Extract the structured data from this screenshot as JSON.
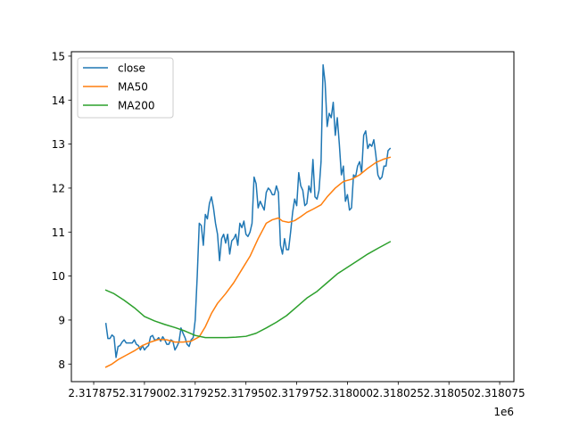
{
  "chart_data": {
    "type": "line",
    "title": "",
    "xlabel": "",
    "ylabel": "",
    "x_offset_label": "1e6",
    "xlim": [
      2317864,
      2318082
    ],
    "ylim": [
      7.6,
      15.1
    ],
    "x_ticks": [
      {
        "value": 2317875,
        "label": "2.317875"
      },
      {
        "value": 2317900,
        "label": "2.317900"
      },
      {
        "value": 2317925,
        "label": "2.317925"
      },
      {
        "value": 2317950,
        "label": "2.317950"
      },
      {
        "value": 2317975,
        "label": "2.317975"
      },
      {
        "value": 2318000,
        "label": "2.318000"
      },
      {
        "value": 2318025,
        "label": "2.318025"
      },
      {
        "value": 2318050,
        "label": "2.318050"
      },
      {
        "value": 2318075,
        "label": "2.318075"
      }
    ],
    "y_ticks": [
      {
        "value": 8,
        "label": "8"
      },
      {
        "value": 9,
        "label": "9"
      },
      {
        "value": 10,
        "label": "10"
      },
      {
        "value": 11,
        "label": "11"
      },
      {
        "value": 12,
        "label": "12"
      },
      {
        "value": 13,
        "label": "13"
      },
      {
        "value": 14,
        "label": "14"
      },
      {
        "value": 15,
        "label": "15"
      }
    ],
    "grid": false,
    "legend_position": "top-left",
    "series": [
      {
        "name": "close",
        "color": "#1f77b4",
        "points": [
          [
            2317881,
            8.92
          ],
          [
            2317882,
            8.58
          ],
          [
            2317883,
            8.58
          ],
          [
            2317884,
            8.66
          ],
          [
            2317885,
            8.62
          ],
          [
            2317886,
            8.15
          ],
          [
            2317887,
            8.4
          ],
          [
            2317888,
            8.42
          ],
          [
            2317889,
            8.5
          ],
          [
            2317890,
            8.55
          ],
          [
            2317891,
            8.48
          ],
          [
            2317892,
            8.48
          ],
          [
            2317893,
            8.48
          ],
          [
            2317894,
            8.48
          ],
          [
            2317895,
            8.55
          ],
          [
            2317896,
            8.45
          ],
          [
            2317897,
            8.42
          ],
          [
            2317898,
            8.32
          ],
          [
            2317899,
            8.42
          ],
          [
            2317900,
            8.32
          ],
          [
            2317901,
            8.38
          ],
          [
            2317902,
            8.42
          ],
          [
            2317903,
            8.62
          ],
          [
            2317904,
            8.65
          ],
          [
            2317905,
            8.55
          ],
          [
            2317906,
            8.55
          ],
          [
            2317907,
            8.6
          ],
          [
            2317908,
            8.52
          ],
          [
            2317909,
            8.62
          ],
          [
            2317910,
            8.55
          ],
          [
            2317911,
            8.45
          ],
          [
            2317912,
            8.45
          ],
          [
            2317913,
            8.55
          ],
          [
            2317914,
            8.52
          ],
          [
            2317915,
            8.32
          ],
          [
            2317916,
            8.4
          ],
          [
            2317917,
            8.5
          ],
          [
            2317918,
            8.82
          ],
          [
            2317919,
            8.7
          ],
          [
            2317920,
            8.6
          ],
          [
            2317921,
            8.45
          ],
          [
            2317922,
            8.4
          ],
          [
            2317923,
            8.55
          ],
          [
            2317924,
            8.6
          ],
          [
            2317925,
            9.0
          ],
          [
            2317926,
            10.0
          ],
          [
            2317927,
            11.2
          ],
          [
            2317928,
            11.15
          ],
          [
            2317929,
            10.7
          ],
          [
            2317930,
            11.4
          ],
          [
            2317931,
            11.3
          ],
          [
            2317932,
            11.65
          ],
          [
            2317933,
            11.8
          ],
          [
            2317934,
            11.55
          ],
          [
            2317935,
            11.2
          ],
          [
            2317936,
            10.95
          ],
          [
            2317937,
            10.35
          ],
          [
            2317938,
            10.85
          ],
          [
            2317939,
            10.95
          ],
          [
            2317940,
            10.75
          ],
          [
            2317941,
            10.95
          ],
          [
            2317942,
            10.5
          ],
          [
            2317943,
            10.8
          ],
          [
            2317944,
            10.85
          ],
          [
            2317945,
            10.95
          ],
          [
            2317946,
            10.7
          ],
          [
            2317947,
            11.2
          ],
          [
            2317948,
            11.1
          ],
          [
            2317949,
            11.25
          ],
          [
            2317950,
            10.95
          ],
          [
            2317951,
            10.9
          ],
          [
            2317952,
            11.0
          ],
          [
            2317953,
            11.2
          ],
          [
            2317954,
            12.25
          ],
          [
            2317955,
            12.1
          ],
          [
            2317956,
            11.55
          ],
          [
            2317957,
            11.7
          ],
          [
            2317958,
            11.6
          ],
          [
            2317959,
            11.5
          ],
          [
            2317960,
            11.9
          ],
          [
            2317961,
            12.0
          ],
          [
            2317962,
            11.95
          ],
          [
            2317963,
            11.85
          ],
          [
            2317964,
            11.85
          ],
          [
            2317965,
            12.05
          ],
          [
            2317966,
            11.9
          ],
          [
            2317967,
            10.7
          ],
          [
            2317968,
            10.5
          ],
          [
            2317969,
            10.85
          ],
          [
            2317970,
            10.6
          ],
          [
            2317971,
            10.6
          ],
          [
            2317972,
            11.0
          ],
          [
            2317973,
            11.45
          ],
          [
            2317974,
            11.75
          ],
          [
            2317975,
            11.6
          ],
          [
            2317976,
            12.35
          ],
          [
            2317977,
            12.05
          ],
          [
            2317978,
            11.95
          ],
          [
            2317979,
            11.6
          ],
          [
            2317980,
            11.65
          ],
          [
            2317981,
            12.05
          ],
          [
            2317982,
            11.9
          ],
          [
            2317983,
            12.65
          ],
          [
            2317984,
            11.8
          ],
          [
            2317985,
            11.75
          ],
          [
            2317986,
            11.95
          ],
          [
            2317987,
            12.6
          ],
          [
            2317988,
            14.8
          ],
          [
            2317989,
            14.4
          ],
          [
            2317990,
            13.4
          ],
          [
            2317991,
            13.7
          ],
          [
            2317992,
            13.6
          ],
          [
            2317993,
            13.95
          ],
          [
            2317994,
            13.2
          ],
          [
            2317995,
            13.6
          ],
          [
            2317996,
            13.0
          ],
          [
            2317997,
            12.3
          ],
          [
            2317998,
            12.5
          ],
          [
            2317999,
            11.7
          ],
          [
            2318000,
            11.85
          ],
          [
            2318001,
            11.5
          ],
          [
            2318002,
            11.55
          ],
          [
            2318003,
            12.3
          ],
          [
            2318004,
            12.25
          ],
          [
            2318005,
            12.5
          ],
          [
            2318006,
            12.6
          ],
          [
            2318007,
            12.35
          ],
          [
            2318008,
            13.2
          ],
          [
            2318009,
            13.3
          ],
          [
            2318010,
            12.9
          ],
          [
            2318011,
            13.0
          ],
          [
            2318012,
            12.95
          ],
          [
            2318013,
            13.1
          ],
          [
            2318014,
            12.75
          ],
          [
            2318015,
            12.3
          ],
          [
            2318016,
            12.2
          ],
          [
            2318017,
            12.25
          ],
          [
            2318018,
            12.5
          ],
          [
            2318019,
            12.5
          ],
          [
            2318020,
            12.85
          ],
          [
            2318021,
            12.9
          ]
        ]
      },
      {
        "name": "MA50",
        "color": "#ff7f0e",
        "points": [
          [
            2317881,
            7.93
          ],
          [
            2317884,
            8.0
          ],
          [
            2317887,
            8.1
          ],
          [
            2317891,
            8.2
          ],
          [
            2317895,
            8.3
          ],
          [
            2317899,
            8.42
          ],
          [
            2317903,
            8.5
          ],
          [
            2317907,
            8.56
          ],
          [
            2317911,
            8.55
          ],
          [
            2317915,
            8.5
          ],
          [
            2317919,
            8.5
          ],
          [
            2317923,
            8.52
          ],
          [
            2317927,
            8.62
          ],
          [
            2317930,
            8.85
          ],
          [
            2317933,
            9.15
          ],
          [
            2317936,
            9.38
          ],
          [
            2317940,
            9.6
          ],
          [
            2317944,
            9.85
          ],
          [
            2317948,
            10.15
          ],
          [
            2317952,
            10.45
          ],
          [
            2317956,
            10.85
          ],
          [
            2317960,
            11.2
          ],
          [
            2317963,
            11.28
          ],
          [
            2317966,
            11.32
          ],
          [
            2317968,
            11.25
          ],
          [
            2317971,
            11.22
          ],
          [
            2317974,
            11.26
          ],
          [
            2317977,
            11.35
          ],
          [
            2317980,
            11.45
          ],
          [
            2317983,
            11.52
          ],
          [
            2317987,
            11.62
          ],
          [
            2317990,
            11.8
          ],
          [
            2317994,
            12.0
          ],
          [
            2317998,
            12.15
          ],
          [
            2318002,
            12.2
          ],
          [
            2318006,
            12.3
          ],
          [
            2318010,
            12.45
          ],
          [
            2318014,
            12.58
          ],
          [
            2318018,
            12.66
          ],
          [
            2318021,
            12.7
          ]
        ]
      },
      {
        "name": "MA200",
        "color": "#2ca02c",
        "points": [
          [
            2317881,
            9.68
          ],
          [
            2317885,
            9.6
          ],
          [
            2317890,
            9.45
          ],
          [
            2317895,
            9.28
          ],
          [
            2317900,
            9.08
          ],
          [
            2317905,
            8.98
          ],
          [
            2317910,
            8.9
          ],
          [
            2317915,
            8.83
          ],
          [
            2317920,
            8.75
          ],
          [
            2317925,
            8.65
          ],
          [
            2317930,
            8.6
          ],
          [
            2317935,
            8.6
          ],
          [
            2317940,
            8.6
          ],
          [
            2317945,
            8.61
          ],
          [
            2317950,
            8.63
          ],
          [
            2317955,
            8.7
          ],
          [
            2317960,
            8.82
          ],
          [
            2317965,
            8.95
          ],
          [
            2317970,
            9.1
          ],
          [
            2317975,
            9.3
          ],
          [
            2317980,
            9.5
          ],
          [
            2317985,
            9.65
          ],
          [
            2317990,
            9.85
          ],
          [
            2317995,
            10.05
          ],
          [
            2318000,
            10.2
          ],
          [
            2318005,
            10.35
          ],
          [
            2318010,
            10.5
          ],
          [
            2318015,
            10.63
          ],
          [
            2318021,
            10.78
          ]
        ]
      }
    ]
  }
}
